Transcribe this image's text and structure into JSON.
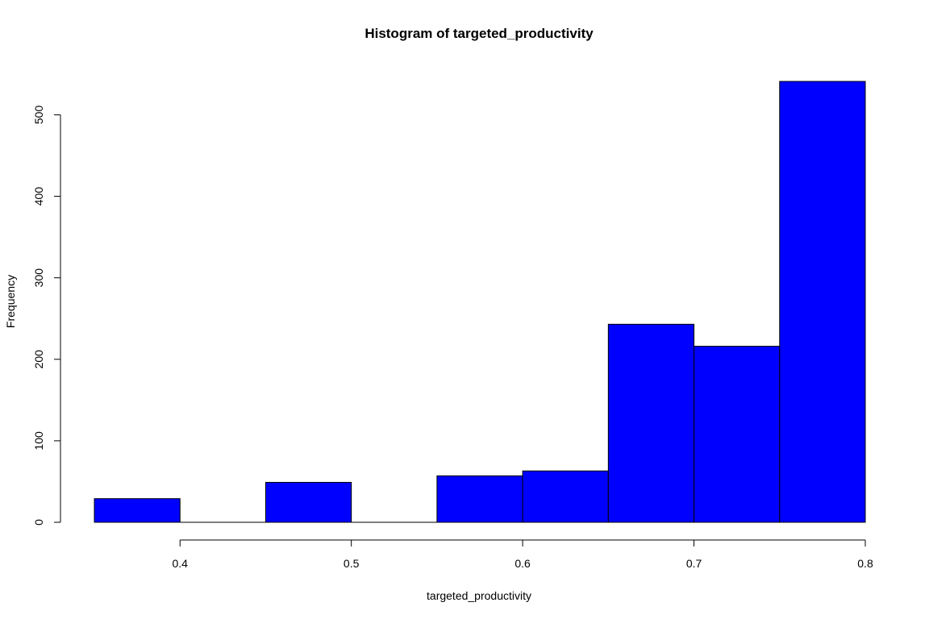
{
  "chart_data": {
    "type": "bar",
    "subtype": "histogram",
    "title": "Histogram of targeted_productivity",
    "xlabel": "targeted_productivity",
    "ylabel": "Frequency",
    "bins": [
      {
        "start": 0.35,
        "end": 0.4,
        "count": 29
      },
      {
        "start": 0.4,
        "end": 0.45,
        "count": 0
      },
      {
        "start": 0.45,
        "end": 0.5,
        "count": 49
      },
      {
        "start": 0.5,
        "end": 0.55,
        "count": 0
      },
      {
        "start": 0.55,
        "end": 0.6,
        "count": 57
      },
      {
        "start": 0.6,
        "end": 0.65,
        "count": 63
      },
      {
        "start": 0.65,
        "end": 0.7,
        "count": 243
      },
      {
        "start": 0.7,
        "end": 0.75,
        "count": 216
      },
      {
        "start": 0.75,
        "end": 0.8,
        "count": 541
      }
    ],
    "xticks": [
      "0.4",
      "0.5",
      "0.6",
      "0.7",
      "0.8"
    ],
    "yticks": [
      "0",
      "100",
      "200",
      "300",
      "400",
      "500"
    ],
    "xlim": [
      0.35,
      0.8
    ],
    "ylim": [
      0,
      541
    ],
    "bar_color": "#0000ff",
    "border_color": "#000000",
    "grid": false
  }
}
